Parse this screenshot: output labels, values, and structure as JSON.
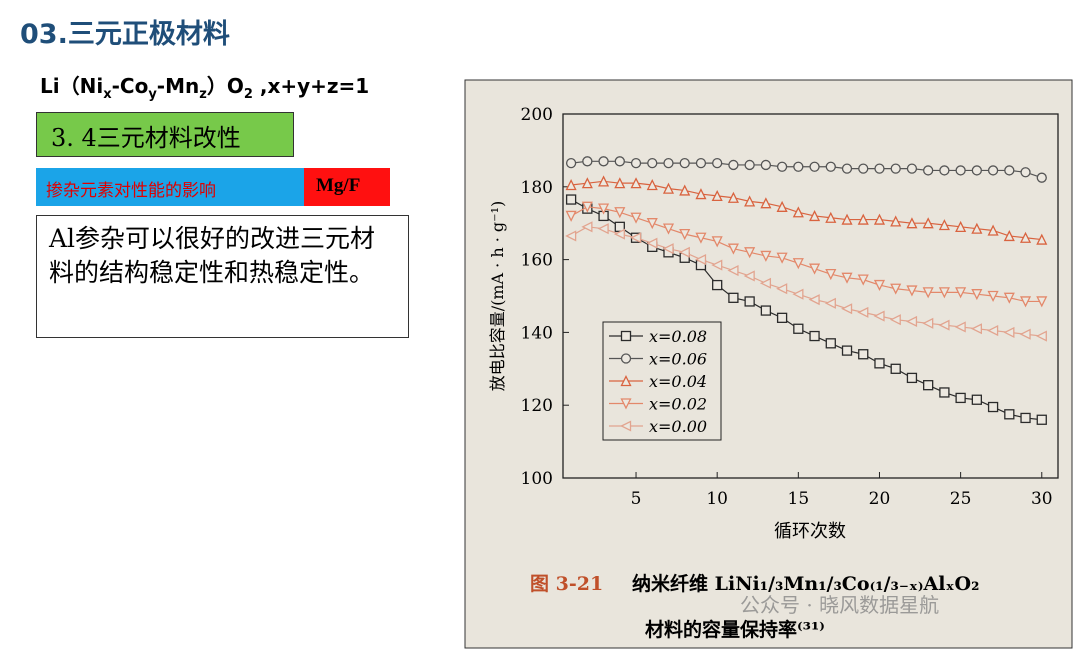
{
  "slide": {
    "title": "03.三元正极材料",
    "formula": [
      "Li（Ni",
      "x",
      "-Co",
      "y",
      "-Mn",
      "z",
      "）O",
      "2",
      " ,x+y+z=1"
    ],
    "section": "3. 4三元材料改性",
    "topic": "掺杂元素对性能的影响",
    "elements": "Mg/F",
    "note": "Al参杂可以很好的改进三元材料的结构稳定性和热稳定性。",
    "watermark": "公众号 · 晓风数据星航"
  },
  "chart_data": {
    "type": "line",
    "ylabel": "放电比容量/(mA · h · g⁻¹)",
    "xlabel": "循环次数",
    "caption_label": "图 3-21",
    "caption": "纳米纤维 LiNi₁/₃Mn₁/₃Co₍₁/₃₋ₓ₎AlₓO₂",
    "caption_2": "材料的容量保持率⁽³¹⁾",
    "x": [
      1,
      2,
      3,
      4,
      5,
      6,
      7,
      8,
      9,
      10,
      11,
      12,
      13,
      14,
      15,
      16,
      17,
      18,
      19,
      20,
      21,
      22,
      23,
      24,
      25,
      26,
      27,
      28,
      29,
      30
    ],
    "xlim": [
      0.5,
      31
    ],
    "xticks": [
      5,
      10,
      15,
      20,
      25,
      30
    ],
    "ylim": [
      100,
      200
    ],
    "yticks": [
      100,
      120,
      140,
      160,
      180,
      200
    ],
    "legend": "lower left",
    "series": [
      {
        "name": "x=0.08",
        "color": "#2b2b2b",
        "marker": "square",
        "values": [
          176.5,
          174,
          172,
          169,
          166,
          163.5,
          162,
          160.5,
          158.5,
          153,
          149.5,
          148.5,
          146,
          144,
          141,
          139,
          137,
          135,
          134,
          131.5,
          130,
          127.5,
          125.5,
          123.5,
          122,
          121.5,
          119.5,
          117.5,
          116.5,
          116
        ]
      },
      {
        "name": "x=0.06",
        "color": "#555555",
        "marker": "circle",
        "values": [
          186.5,
          187,
          187,
          187,
          186.5,
          186.5,
          186.5,
          186.5,
          186.5,
          186.5,
          186,
          186,
          186,
          185.5,
          185.5,
          185.5,
          185.5,
          185,
          185,
          185,
          185,
          185,
          184.5,
          184.5,
          184.5,
          184.5,
          184.5,
          184.5,
          184,
          182.5
        ]
      },
      {
        "name": "x=0.04",
        "color": "#d9633f",
        "marker": "triangle-up",
        "values": [
          180.5,
          181,
          181.5,
          181,
          181,
          180.5,
          179.5,
          179,
          178,
          177.5,
          177,
          176,
          175.5,
          174.5,
          173,
          172,
          171.5,
          171,
          171,
          171,
          170.5,
          170,
          170,
          169.5,
          169,
          168.5,
          168,
          166.5,
          166,
          165.5
        ]
      },
      {
        "name": "x=0.02",
        "color": "#e3886a",
        "marker": "triangle-down",
        "values": [
          172,
          174.5,
          174,
          173,
          171.5,
          170,
          168.5,
          167,
          166,
          165,
          163,
          162,
          161,
          160.5,
          159,
          157.5,
          156,
          155,
          154.5,
          153,
          152,
          151.5,
          151,
          151,
          151,
          150.5,
          150,
          149.5,
          148.5,
          148.5
        ]
      },
      {
        "name": "x=0.00",
        "color": "#e2a48f",
        "marker": "triangle-left",
        "values": [
          166.5,
          169,
          168.5,
          167,
          166,
          164.5,
          163,
          162,
          160,
          158.5,
          157,
          155.5,
          153.5,
          152,
          150.5,
          149,
          148,
          146.5,
          145.5,
          144.5,
          143.5,
          143,
          142.5,
          142,
          141.5,
          141,
          140.5,
          140,
          139.5,
          139
        ]
      }
    ]
  }
}
